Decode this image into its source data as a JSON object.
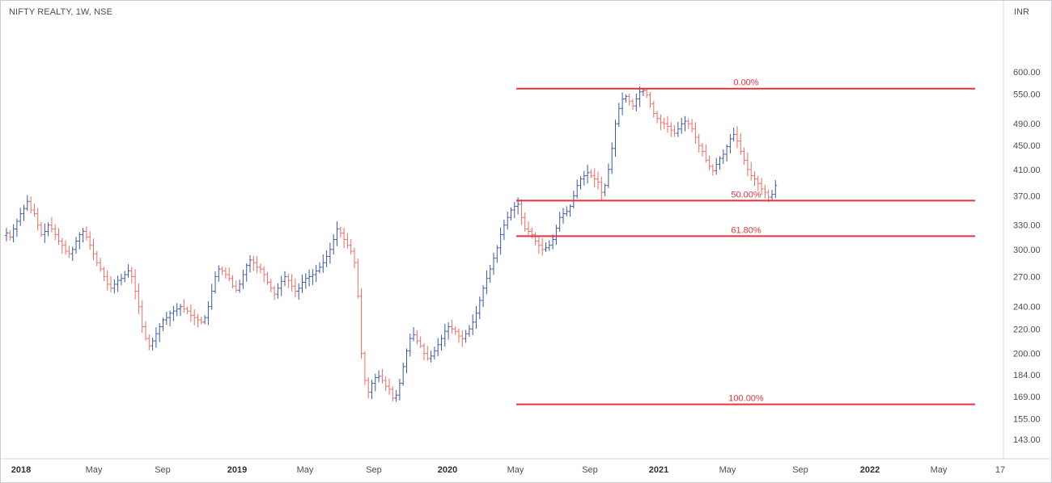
{
  "chart_data": {
    "type": "ohlc",
    "title": "NIFTY REALTY, 1W, NSE",
    "currency": "INR",
    "colors": {
      "up": "#3b58a8",
      "down": "#ef6b61",
      "fib_line": "#e8323c"
    },
    "y_axis": {
      "scale": "log",
      "range": [
        136,
        700
      ],
      "ticks": [
        "600.00",
        "550.00",
        "490.00",
        "450.00",
        "410.00",
        "370.00",
        "330.00",
        "300.00",
        "270.00",
        "240.00",
        "220.00",
        "200.00",
        "184.00",
        "169.00",
        "155.00",
        "143.00"
      ]
    },
    "x_axis": {
      "labels": [
        {
          "text": "2018",
          "bold": true
        },
        {
          "text": "May",
          "bold": false
        },
        {
          "text": "Sep",
          "bold": false
        },
        {
          "text": "2019",
          "bold": true
        },
        {
          "text": "May",
          "bold": false
        },
        {
          "text": "Sep",
          "bold": false
        },
        {
          "text": "2020",
          "bold": true
        },
        {
          "text": "May",
          "bold": false
        },
        {
          "text": "Sep",
          "bold": false
        },
        {
          "text": "2021",
          "bold": true
        },
        {
          "text": "May",
          "bold": false
        },
        {
          "text": "Sep",
          "bold": false
        },
        {
          "text": "2022",
          "bold": true
        },
        {
          "text": "May",
          "bold": false
        },
        {
          "text": "17",
          "bold": false
        }
      ]
    },
    "fibonacci": [
      {
        "label": "0.00%",
        "price": 562
      },
      {
        "label": "50.00%",
        "price": 363
      },
      {
        "label": "61.80%",
        "price": 316
      },
      {
        "label": "100.00%",
        "price": 164
      }
    ],
    "weekly_close_path": [
      320,
      315,
      325,
      335,
      345,
      352,
      362,
      350,
      345,
      330,
      318,
      322,
      330,
      325,
      318,
      310,
      305,
      298,
      295,
      300,
      310,
      318,
      322,
      315,
      305,
      295,
      285,
      278,
      270,
      262,
      258,
      262,
      266,
      268,
      272,
      276,
      270,
      255,
      240,
      222,
      212,
      206,
      210,
      216,
      222,
      228,
      230,
      234,
      236,
      238,
      240,
      238,
      236,
      232,
      230,
      228,
      226,
      230,
      240,
      255,
      270,
      278,
      276,
      272,
      268,
      260,
      256,
      262,
      272,
      282,
      288,
      285,
      280,
      278,
      272,
      264,
      258,
      252,
      258,
      265,
      270,
      266,
      260,
      255,
      258,
      264,
      268,
      270,
      272,
      276,
      280,
      285,
      292,
      300,
      312,
      325,
      320,
      312,
      305,
      298,
      285,
      250,
      200,
      180,
      172,
      178,
      182,
      183,
      180,
      176,
      174,
      168,
      170,
      178,
      190,
      202,
      212,
      215,
      210,
      206,
      200,
      196,
      198,
      202,
      207,
      212,
      218,
      222,
      220,
      218,
      214,
      212,
      216,
      220,
      226,
      234,
      246,
      258,
      268,
      278,
      290,
      302,
      318,
      330,
      340,
      350,
      355,
      358,
      340,
      325,
      322,
      318,
      310,
      305,
      300,
      302,
      305,
      312,
      326,
      340,
      345,
      348,
      355,
      370,
      385,
      395,
      400,
      405,
      400,
      395,
      390,
      375,
      385,
      410,
      445,
      490,
      520,
      540,
      545,
      535,
      525,
      540,
      555,
      558,
      548,
      530,
      510,
      500,
      492,
      490,
      485,
      478,
      472,
      480,
      490,
      495,
      490,
      480,
      465,
      450,
      440,
      425,
      415,
      408,
      418,
      428,
      435,
      448,
      462,
      470,
      458,
      440,
      425,
      410,
      400,
      395,
      388,
      380,
      375,
      368,
      372,
      385
    ]
  }
}
